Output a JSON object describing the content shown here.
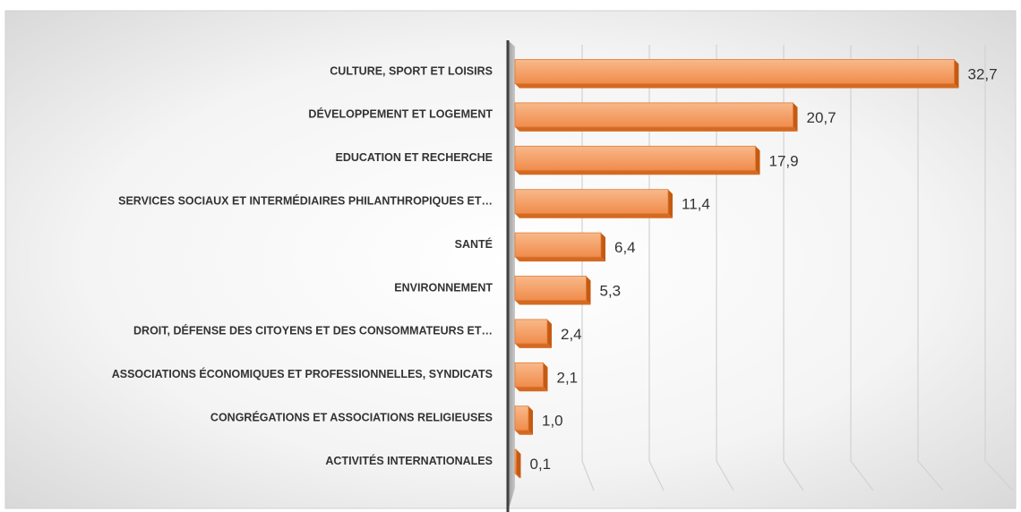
{
  "chart_data": {
    "type": "bar",
    "orientation": "horizontal",
    "categories": [
      "CULTURE, SPORT ET LOISIRS",
      "DÉVELOPPEMENT ET LOGEMENT",
      "EDUCATION ET RECHERCHE",
      "SERVICES SOCIAUX ET INTERMÉDIAIRES PHILANTHROPIQUES ET…",
      "SANTÉ",
      "ENVIRONNEMENT",
      "DROIT, DÉFENSE DES CITOYENS ET DES CONSOMMATEURS ET…",
      "ASSOCIATIONS ÉCONOMIQUES ET PROFESSIONNELLES, SYNDICATS",
      "CONGRÉGATIONS ET ASSOCIATIONS RELIGIEUSES",
      "ACTIVITÉS INTERNATIONALES"
    ],
    "values": [
      32.7,
      20.7,
      17.9,
      11.4,
      6.4,
      5.3,
      2.4,
      2.1,
      1.0,
      0.1
    ],
    "value_labels": [
      "32,7",
      "20,7",
      "17,9",
      "11,4",
      "6,4",
      "5,3",
      "2,4",
      "2,1",
      "1,0",
      "0,1"
    ],
    "color": "#f4a068",
    "xlim": [
      0,
      35
    ],
    "xticks": [
      0,
      5,
      10,
      15,
      20,
      25,
      30,
      35
    ],
    "grid": true
  }
}
